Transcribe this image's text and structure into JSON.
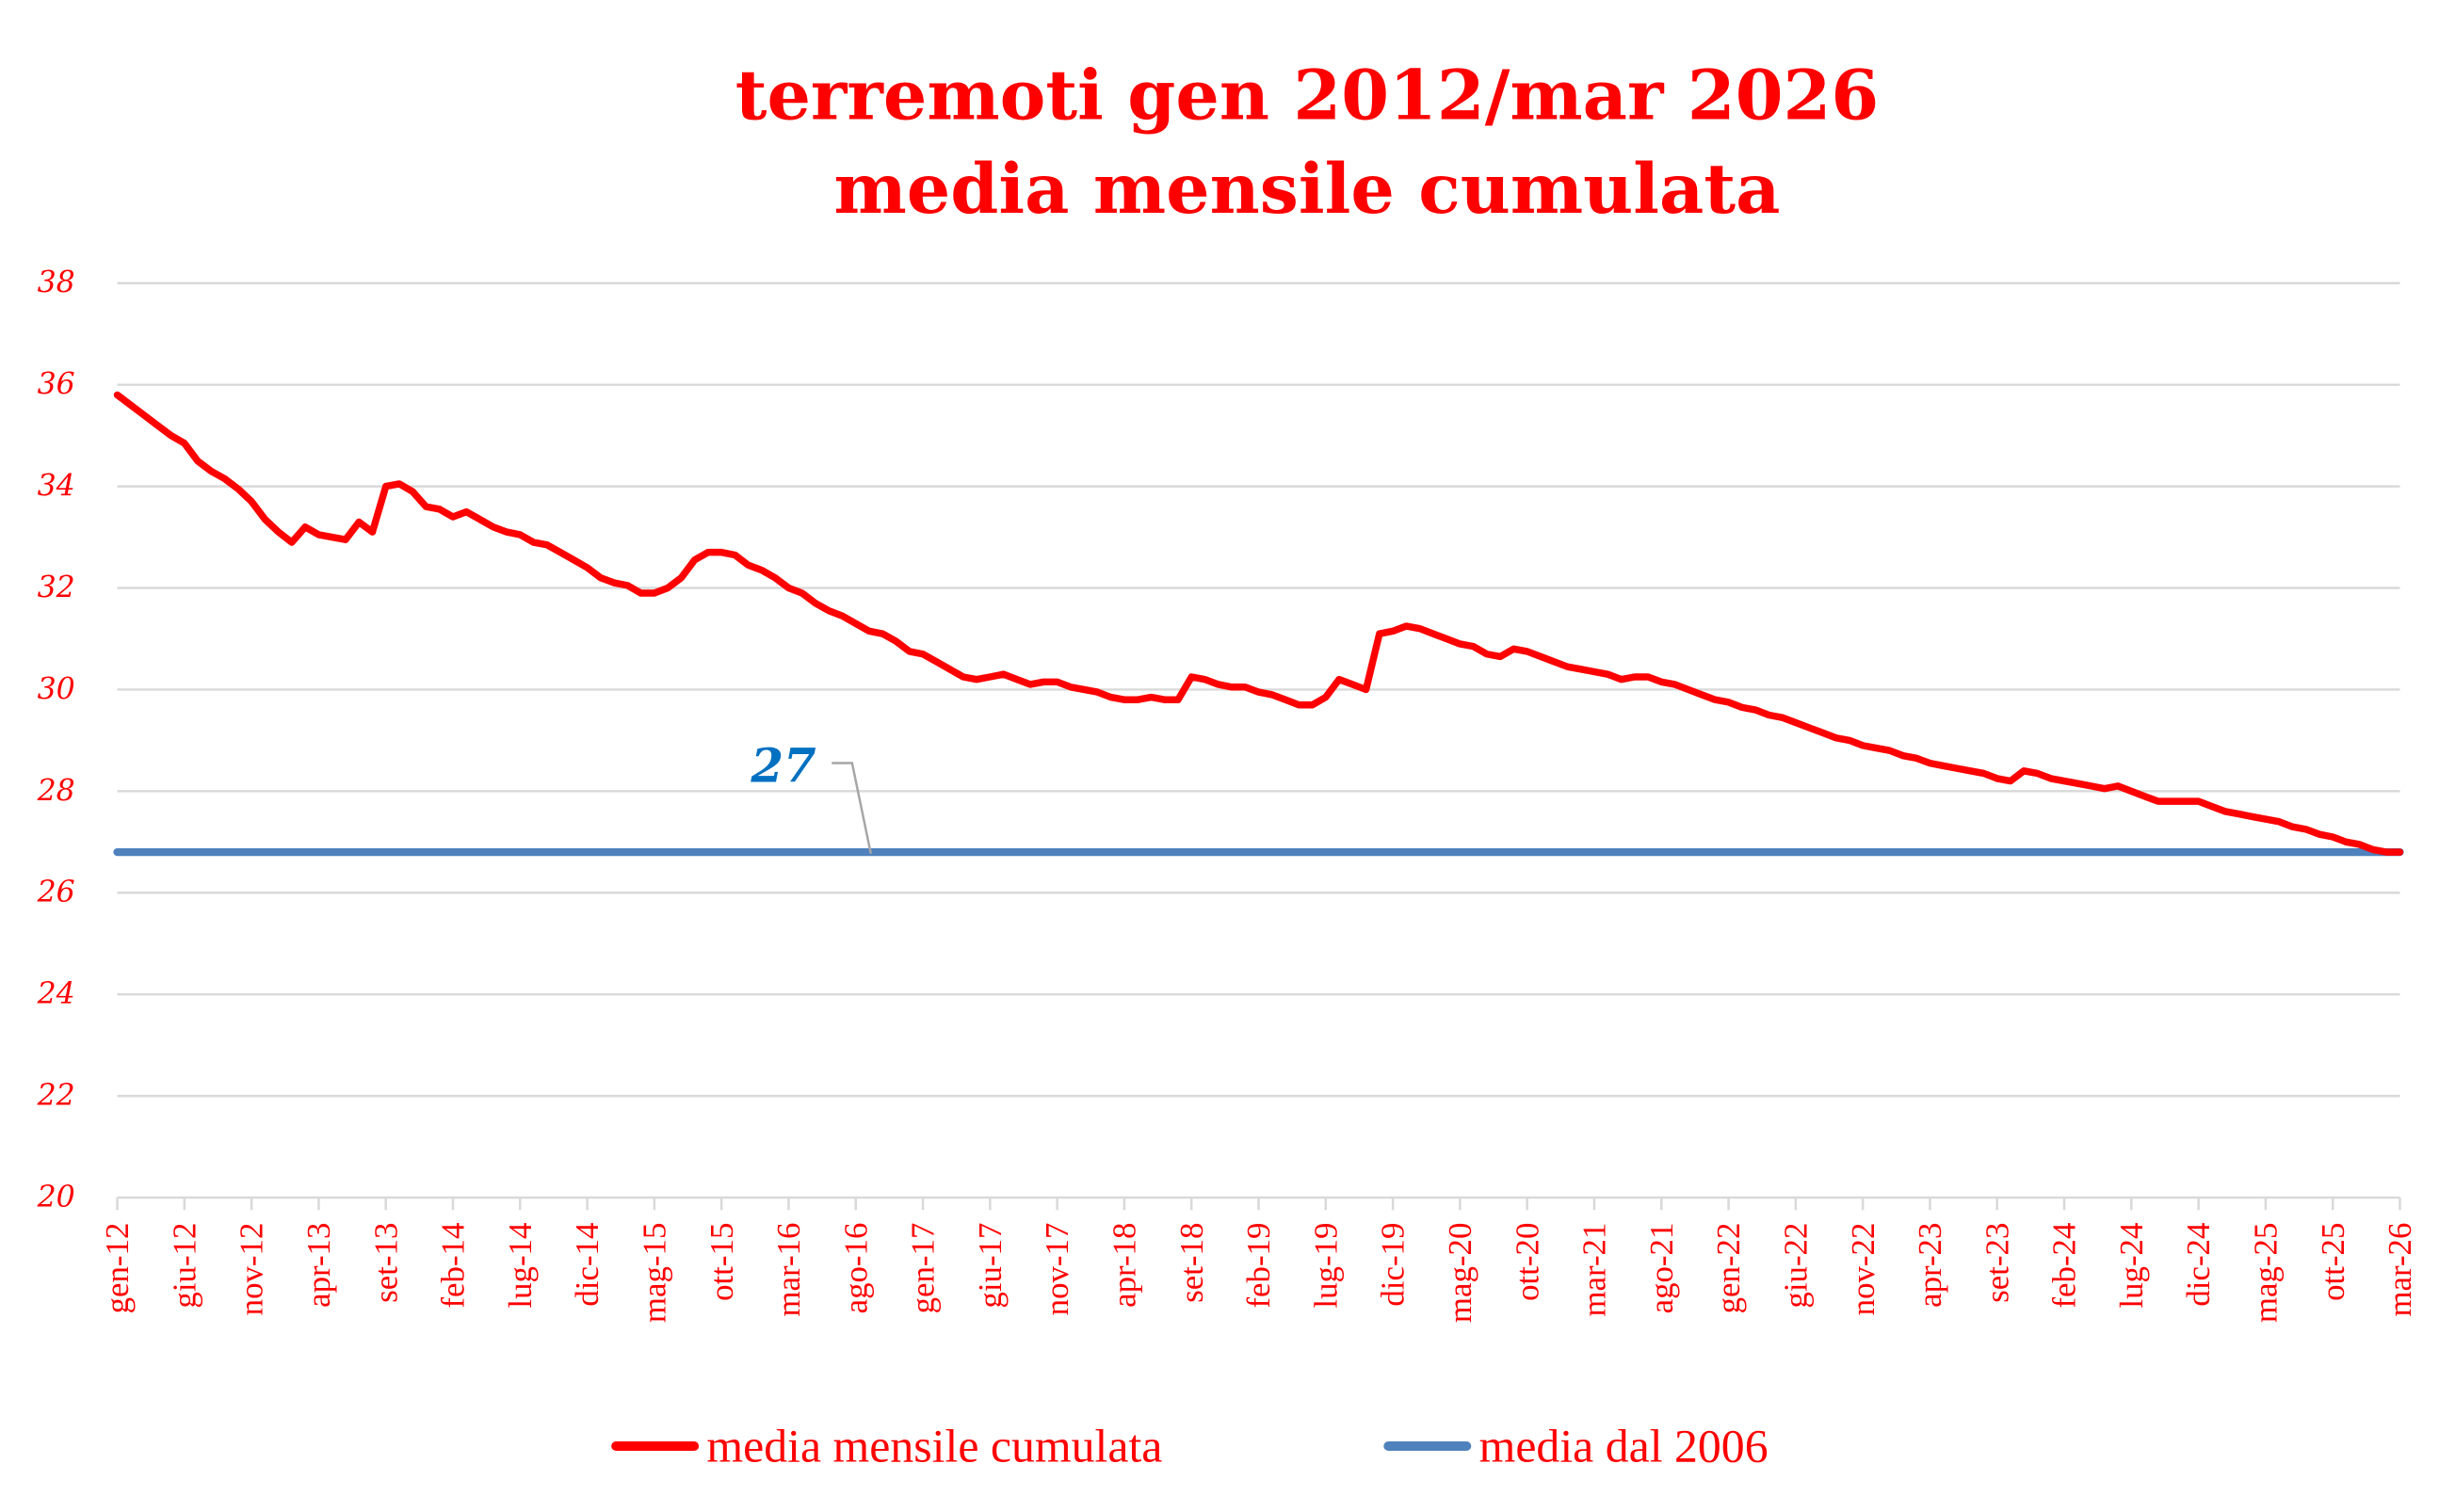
{
  "chart_data": {
    "type": "line",
    "title": [
      "terremoti gen 2012/mar 2026",
      "media mensile cumulata"
    ],
    "xlabel": "",
    "ylabel": "",
    "ylim": [
      20,
      38
    ],
    "yticks": [
      "20",
      "22",
      "24",
      "26",
      "28",
      "30",
      "32",
      "34",
      "36",
      "38"
    ],
    "grid": true,
    "legend_position": "bottom",
    "x_start": "gen-12",
    "x_end": "mar-26",
    "xtick_labels": [
      "gen-12",
      "giu-12",
      "nov-12",
      "apr-13",
      "set-13",
      "feb-14",
      "lug-14",
      "dic-14",
      "mag-15",
      "ott-15",
      "mar-16",
      "ago-16",
      "gen-17",
      "giu-17",
      "nov-17",
      "apr-18",
      "set-18",
      "feb-19",
      "lug-19",
      "dic-19",
      "mag-20",
      "ott-20",
      "mar-21",
      "ago-21",
      "gen-22",
      "giu-22",
      "nov-22",
      "apr-23",
      "set-23",
      "feb-24",
      "lug-24",
      "dic-24",
      "mag-25",
      "ott-25",
      "mar-26"
    ],
    "series": [
      {
        "name": "media mensile cumulata",
        "color": "#ff0000",
        "values": [
          35.8,
          35.6,
          35.4,
          35.2,
          35.0,
          34.85,
          34.5,
          34.3,
          34.15,
          33.95,
          33.7,
          33.35,
          33.1,
          32.9,
          33.2,
          33.05,
          33.0,
          32.95,
          33.3,
          33.1,
          34.0,
          34.05,
          33.9,
          33.6,
          33.55,
          33.4,
          33.5,
          33.35,
          33.2,
          33.1,
          33.05,
          32.9,
          32.85,
          32.7,
          32.55,
          32.4,
          32.2,
          32.1,
          32.05,
          31.9,
          31.9,
          32.0,
          32.2,
          32.55,
          32.7,
          32.7,
          32.65,
          32.45,
          32.35,
          32.2,
          32.0,
          31.9,
          31.7,
          31.55,
          31.45,
          31.3,
          31.15,
          31.1,
          30.95,
          30.75,
          30.7,
          30.55,
          30.4,
          30.25,
          30.2,
          30.25,
          30.3,
          30.2,
          30.1,
          30.15,
          30.15,
          30.05,
          30.0,
          29.95,
          29.85,
          29.8,
          29.8,
          29.85,
          29.8,
          29.8,
          30.25,
          30.2,
          30.1,
          30.05,
          30.05,
          29.95,
          29.9,
          29.8,
          29.7,
          29.7,
          29.85,
          30.2,
          30.1,
          30.0,
          31.1,
          31.15,
          31.25,
          31.2,
          31.1,
          31.0,
          30.9,
          30.85,
          30.7,
          30.65,
          30.8,
          30.75,
          30.65,
          30.55,
          30.45,
          30.4,
          30.35,
          30.3,
          30.2,
          30.25,
          30.25,
          30.15,
          30.1,
          30.0,
          29.9,
          29.8,
          29.75,
          29.65,
          29.6,
          29.5,
          29.45,
          29.35,
          29.25,
          29.15,
          29.05,
          29.0,
          28.9,
          28.85,
          28.8,
          28.7,
          28.65,
          28.55,
          28.5,
          28.45,
          28.4,
          28.35,
          28.25,
          28.2,
          28.4,
          28.35,
          28.25,
          28.2,
          28.15,
          28.1,
          28.05,
          28.1,
          28.0,
          27.9,
          27.8,
          27.8,
          27.8,
          27.8,
          27.7,
          27.6,
          27.55,
          27.5,
          27.45,
          27.4,
          27.3,
          27.25,
          27.15,
          27.1,
          27.0,
          26.95,
          26.85,
          26.8,
          26.8
        ]
      },
      {
        "name": "media dal 2006",
        "color": "#4f81bd",
        "constant": 26.8
      }
    ],
    "annotations": [
      {
        "text": "27",
        "color": "#0070c0",
        "series": "media dal 2006"
      }
    ]
  }
}
